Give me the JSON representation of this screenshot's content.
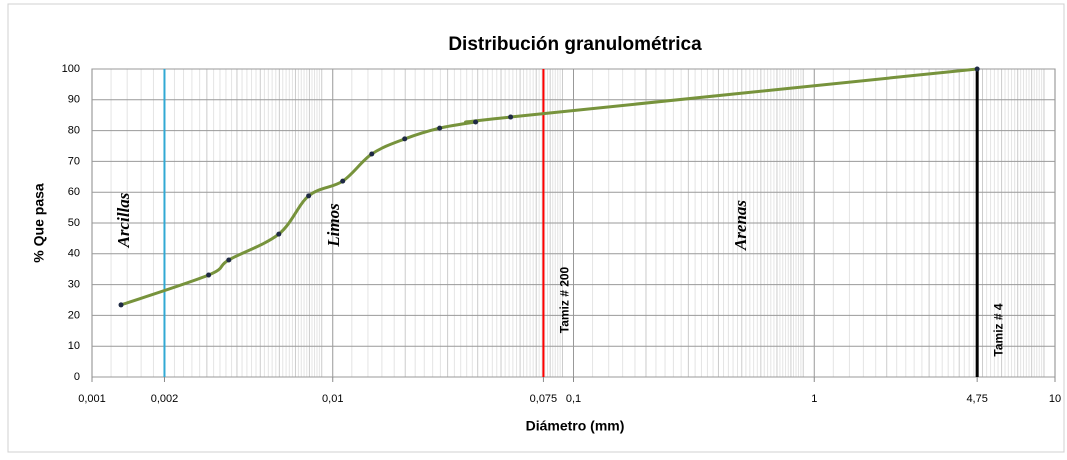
{
  "chart_data": {
    "type": "line",
    "title": "Distribución granulométrica",
    "x_label": "Diámetro (mm)",
    "y_label": "% Que pasa",
    "x_scale": "log",
    "xlim": [
      0.001,
      10
    ],
    "ylim": [
      0,
      100
    ],
    "xticks": [
      {
        "value": 0.001,
        "label": "0,001"
      },
      {
        "value": 0.002,
        "label": "0,002"
      },
      {
        "value": 0.01,
        "label": "0,01"
      },
      {
        "value": 0.075,
        "label": "0,075"
      },
      {
        "value": 0.1,
        "label": "0,1"
      },
      1,
      {
        "value": 4.75,
        "label": "4,75"
      },
      10
    ],
    "yticks": [
      0,
      10,
      20,
      30,
      40,
      50,
      60,
      70,
      80,
      90,
      100
    ],
    "grid": true,
    "series": [
      {
        "color": "#77933c",
        "x": [
          0.00132,
          0.00305,
          0.0037,
          0.00597,
          0.00794,
          0.011,
          0.01452,
          0.0199,
          0.0278,
          0.0392,
          0.0548,
          4.75
        ],
        "values": [
          23.4,
          33.1,
          38,
          46.4,
          58.8,
          63.6,
          72.4,
          77.3,
          80.8,
          82.8,
          84.4,
          100
        ]
      }
    ],
    "reference_lines": [
      {
        "x": 0.002,
        "color": "#31a9d4"
      },
      {
        "x": 0.075,
        "color": "#ff0000",
        "label": "Tamiz # 200"
      },
      {
        "x": 4.75,
        "color": "#000000",
        "label": "Tamiz # 4"
      }
    ],
    "annotations": [
      "Arcillas",
      "Limos",
      "Arenas"
    ]
  }
}
